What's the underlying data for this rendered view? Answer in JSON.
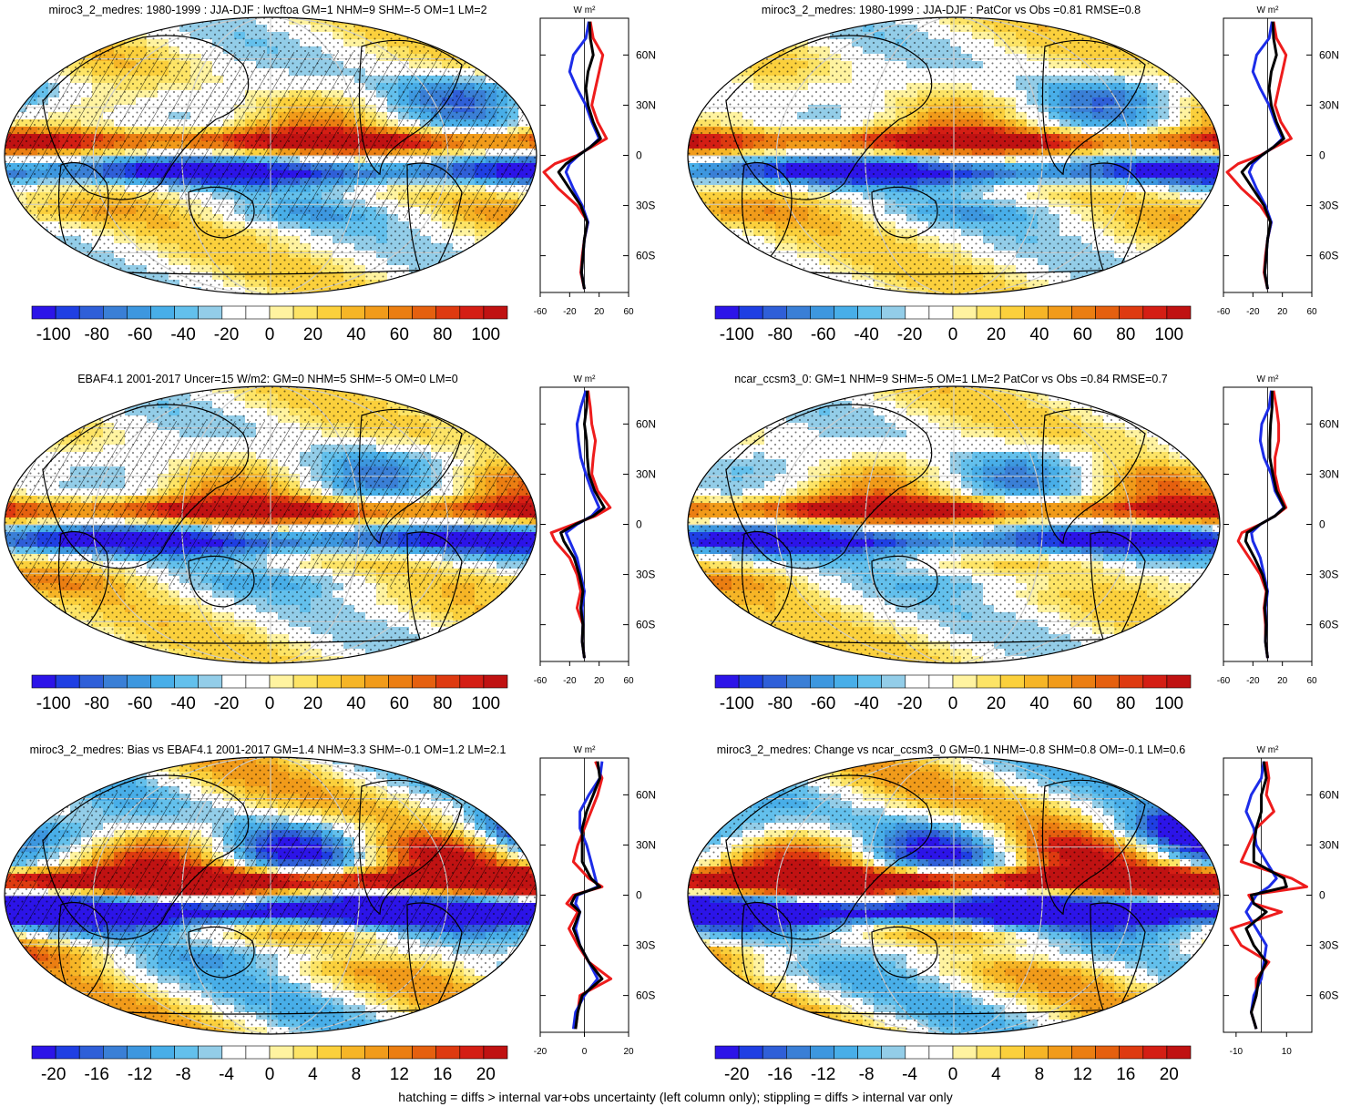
{
  "footer": "hatching = diffs > internal var+obs uncertainty (left column only); stippling = diffs > internal var only",
  "unit_label": "W m²",
  "colors": {
    "scale": [
      "#2c14e8",
      "#1f3fe3",
      "#2f5fd8",
      "#3a7fd6",
      "#3d97df",
      "#48aee8",
      "#63c0ec",
      "#93cde8",
      "#ffffff",
      "#ffffff",
      "#fff3a0",
      "#fde466",
      "#fbd03c",
      "#f6b526",
      "#f19b1a",
      "#eb7e12",
      "#e5600f",
      "#de3a10",
      "#d41e14",
      "#c01212"
    ],
    "sim": "#ee1c1c",
    "obs": "#1c2ce8",
    "mean": "#000000"
  },
  "chart_data": [
    {
      "type": "heatmap",
      "title": "miroc3_2_medres: 1980-1999 : JJA-DJF : lwcftoa GM=1 NHM=9 SHM=-5 OM=1 LM=2",
      "colorbar_ticks": [
        "-100",
        "-80",
        "-60",
        "-40",
        "-20",
        "0",
        "20",
        "40",
        "60",
        "80",
        "100"
      ],
      "colorbar_range": [
        -110,
        110
      ],
      "profile_xticks": [
        "-60",
        "-20",
        "20",
        "60"
      ],
      "profile_xlim": [
        -60,
        60
      ],
      "lat_ticks": [
        "60N",
        "30N",
        "0",
        "30S",
        "60S"
      ],
      "hatched": true,
      "profile_series": [
        {
          "name": "model",
          "lat": [
            80,
            70,
            60,
            50,
            40,
            30,
            20,
            10,
            5,
            0,
            -5,
            -10,
            -20,
            -30,
            -40,
            -50,
            -60,
            -70,
            -80
          ],
          "values": [
            8,
            12,
            25,
            20,
            15,
            10,
            18,
            30,
            10,
            -10,
            -40,
            -55,
            -35,
            -10,
            5,
            0,
            -3,
            -5,
            0
          ]
        },
        {
          "name": "obs",
          "lat": [
            80,
            70,
            60,
            50,
            40,
            30,
            20,
            10,
            5,
            0,
            -5,
            -10,
            -20,
            -30,
            -40,
            -50,
            -60,
            -70,
            -80
          ],
          "values": [
            6,
            2,
            -15,
            -20,
            -10,
            2,
            10,
            20,
            8,
            -8,
            -20,
            -25,
            -15,
            -3,
            5,
            0,
            -2,
            -4,
            0
          ]
        },
        {
          "name": "ensemble",
          "lat": [
            80,
            70,
            60,
            50,
            40,
            30,
            20,
            10,
            5,
            0,
            -5,
            -10,
            -20,
            -30,
            -40,
            -50,
            -60,
            -70,
            -80
          ],
          "values": [
            7,
            8,
            12,
            5,
            2,
            5,
            12,
            22,
            8,
            -8,
            -25,
            -35,
            -20,
            -5,
            4,
            0,
            -2,
            -4,
            0
          ]
        }
      ]
    },
    {
      "type": "heatmap",
      "title": "miroc3_2_medres: 1980-1999 : JJA-DJF : PatCor vs Obs =0.81 RMSE=0.8",
      "colorbar_ticks": [
        "-100",
        "-80",
        "-60",
        "-40",
        "-20",
        "0",
        "20",
        "40",
        "60",
        "80",
        "100"
      ],
      "colorbar_range": [
        -110,
        110
      ],
      "profile_xticks": [
        "-60",
        "-20",
        "20",
        "60"
      ],
      "profile_xlim": [
        -60,
        60
      ],
      "lat_ticks": [
        "60N",
        "30N",
        "0",
        "30S",
        "60S"
      ],
      "hatched": false,
      "profile_series": [
        {
          "name": "model",
          "lat": [
            80,
            70,
            60,
            50,
            40,
            30,
            20,
            10,
            5,
            0,
            -5,
            -10,
            -20,
            -30,
            -40,
            -50,
            -60,
            -70,
            -80
          ],
          "values": [
            8,
            12,
            25,
            20,
            15,
            10,
            18,
            32,
            10,
            -10,
            -40,
            -55,
            -35,
            -10,
            5,
            0,
            -3,
            -5,
            0
          ]
        },
        {
          "name": "obs",
          "lat": [
            80,
            70,
            60,
            50,
            40,
            30,
            20,
            10,
            5,
            0,
            -5,
            -10,
            -20,
            -30,
            -40,
            -50,
            -60,
            -70,
            -80
          ],
          "values": [
            6,
            2,
            -15,
            -20,
            -10,
            2,
            10,
            20,
            8,
            -8,
            -20,
            -25,
            -15,
            -3,
            5,
            0,
            -2,
            -4,
            0
          ]
        },
        {
          "name": "ensemble",
          "lat": [
            80,
            70,
            60,
            50,
            40,
            30,
            20,
            10,
            5,
            0,
            -5,
            -10,
            -20,
            -30,
            -40,
            -50,
            -60,
            -70,
            -80
          ],
          "values": [
            7,
            8,
            12,
            5,
            2,
            5,
            12,
            22,
            8,
            -8,
            -25,
            -35,
            -20,
            -5,
            4,
            0,
            -2,
            -4,
            0
          ]
        }
      ]
    },
    {
      "type": "heatmap",
      "title": "EBAF4.1 2001-2017 Uncer=15 W/m2: GM=0 NHM=5 SHM=-5 OM=0 LM=0",
      "colorbar_ticks": [
        "-100",
        "-80",
        "-60",
        "-40",
        "-20",
        "0",
        "20",
        "40",
        "60",
        "80",
        "100"
      ],
      "colorbar_range": [
        -110,
        110
      ],
      "profile_xticks": [
        "-60",
        "-20",
        "20",
        "60"
      ],
      "profile_xlim": [
        -60,
        60
      ],
      "lat_ticks": [
        "60N",
        "30N",
        "0",
        "30S",
        "60S"
      ],
      "hatched": true,
      "profile_series": [
        {
          "name": "model",
          "lat": [
            80,
            70,
            60,
            50,
            40,
            30,
            20,
            10,
            5,
            0,
            -5,
            -10,
            -20,
            -30,
            -40,
            -50,
            -60,
            -70,
            -80
          ],
          "values": [
            5,
            8,
            10,
            15,
            12,
            10,
            18,
            35,
            15,
            -15,
            -45,
            -40,
            -20,
            -10,
            -5,
            -10,
            -2,
            -3,
            0
          ]
        },
        {
          "name": "obs",
          "lat": [
            80,
            70,
            60,
            50,
            40,
            30,
            20,
            10,
            5,
            0,
            -5,
            -10,
            -20,
            -30,
            -40,
            -50,
            -60,
            -70,
            -80
          ],
          "values": [
            2,
            -5,
            -10,
            -8,
            -5,
            2,
            10,
            20,
            10,
            -10,
            -25,
            -20,
            -10,
            -5,
            0,
            -3,
            -2,
            -3,
            0
          ]
        },
        {
          "name": "ensemble",
          "lat": [
            80,
            70,
            60,
            50,
            40,
            30,
            20,
            10,
            5,
            0,
            -5,
            -10,
            -20,
            -30,
            -40,
            -50,
            -60,
            -70,
            -80
          ],
          "values": [
            4,
            3,
            0,
            3,
            4,
            6,
            14,
            27,
            12,
            -12,
            -32,
            -28,
            -14,
            -7,
            -2,
            -5,
            -2,
            -3,
            0
          ]
        }
      ]
    },
    {
      "type": "heatmap",
      "title": "ncar_ccsm3_0: GM=1 NHM=9 SHM=-5 OM=1 LM=2 PatCor vs Obs =0.84 RMSE=0.7",
      "colorbar_ticks": [
        "-100",
        "-80",
        "-60",
        "-40",
        "-20",
        "0",
        "20",
        "40",
        "60",
        "80",
        "100"
      ],
      "colorbar_range": [
        -110,
        110
      ],
      "profile_xticks": [
        "-60",
        "-20",
        "20",
        "60"
      ],
      "profile_xlim": [
        -60,
        60
      ],
      "lat_ticks": [
        "60N",
        "30N",
        "0",
        "30S",
        "60S"
      ],
      "hatched": false,
      "profile_series": [
        {
          "name": "model",
          "lat": [
            80,
            70,
            60,
            50,
            40,
            30,
            20,
            10,
            5,
            0,
            -5,
            -10,
            -20,
            -30,
            -40,
            -50,
            -60,
            -70,
            -80
          ],
          "values": [
            8,
            12,
            15,
            15,
            10,
            10,
            15,
            25,
            10,
            -10,
            -35,
            -40,
            -25,
            -10,
            -2,
            -5,
            -3,
            -3,
            0
          ]
        },
        {
          "name": "obs",
          "lat": [
            80,
            70,
            60,
            50,
            40,
            30,
            20,
            10,
            5,
            0,
            -5,
            -10,
            -20,
            -30,
            -40,
            -50,
            -60,
            -70,
            -80
          ],
          "values": [
            5,
            2,
            -8,
            -10,
            -5,
            5,
            10,
            22,
            10,
            -10,
            -22,
            -20,
            -10,
            -5,
            0,
            -3,
            -2,
            -3,
            0
          ]
        },
        {
          "name": "ensemble",
          "lat": [
            80,
            70,
            60,
            50,
            40,
            30,
            20,
            10,
            5,
            0,
            -5,
            -10,
            -20,
            -30,
            -40,
            -50,
            -60,
            -70,
            -80
          ],
          "values": [
            6,
            6,
            4,
            3,
            3,
            7,
            12,
            23,
            10,
            -10,
            -28,
            -30,
            -18,
            -7,
            -1,
            -4,
            -2,
            -3,
            0
          ]
        }
      ]
    },
    {
      "type": "heatmap",
      "title": "miroc3_2_medres: Bias vs EBAF4.1 2001-2017 GM=1.4 NHM=3.3 SHM=-0.1 OM=1.2 LM=2.1",
      "colorbar_ticks": [
        "-20",
        "-16",
        "-12",
        "-8",
        "-4",
        "0",
        "4",
        "8",
        "12",
        "16",
        "20"
      ],
      "colorbar_range": [
        -22,
        22
      ],
      "profile_xticks": [
        "-20",
        "0",
        "20"
      ],
      "profile_xlim": [
        -20,
        20
      ],
      "lat_ticks": [
        "60N",
        "30N",
        "0",
        "30S",
        "60S"
      ],
      "hatched": true,
      "profile_series": [
        {
          "name": "model",
          "lat": [
            80,
            70,
            60,
            50,
            40,
            30,
            20,
            10,
            5,
            0,
            -5,
            -10,
            -20,
            -30,
            -40,
            -50,
            -60,
            -70,
            -80
          ],
          "values": [
            5,
            8,
            6,
            3,
            0,
            -3,
            -5,
            2,
            8,
            -5,
            -8,
            -3,
            -7,
            -3,
            2,
            12,
            -2,
            -3,
            -4
          ]
        },
        {
          "name": "obs",
          "lat": [
            80,
            70,
            60,
            50,
            40,
            30,
            20,
            10,
            5,
            0,
            -5,
            -10,
            -20,
            -30,
            -40,
            -50,
            -60,
            -70,
            -80
          ],
          "values": [
            8,
            7,
            2,
            -2,
            -2,
            1,
            3,
            5,
            6,
            -3,
            -4,
            -2,
            -4,
            -2,
            2,
            6,
            0,
            -4,
            -5
          ]
        },
        {
          "name": "ensemble",
          "lat": [
            80,
            70,
            60,
            50,
            40,
            30,
            20,
            10,
            5,
            0,
            -5,
            -10,
            -20,
            -30,
            -40,
            -50,
            -60,
            -70,
            -80
          ],
          "values": [
            6,
            7,
            4,
            1,
            -1,
            -1,
            -1,
            3,
            7,
            -4,
            -6,
            -2,
            -5,
            -2,
            2,
            8,
            -1,
            -3,
            -4
          ]
        }
      ]
    },
    {
      "type": "heatmap",
      "title": "miroc3_2_medres: Change vs ncar_ccsm3_0 GM=0.1 NHM=-0.8 SHM=0.8 OM=-0.1 LM=0.6",
      "colorbar_ticks": [
        "-20",
        "-16",
        "-12",
        "-8",
        "-4",
        "0",
        "4",
        "8",
        "12",
        "16",
        "20"
      ],
      "colorbar_range": [
        -22,
        22
      ],
      "profile_xticks": [
        "-10",
        "10"
      ],
      "profile_xlim": [
        -15,
        20
      ],
      "lat_ticks": [
        "60N",
        "30N",
        "0",
        "30S",
        "60S"
      ],
      "hatched": false,
      "profile_series": [
        {
          "name": "model",
          "lat": [
            80,
            70,
            60,
            50,
            40,
            30,
            20,
            10,
            5,
            0,
            -5,
            -10,
            -20,
            -30,
            -40,
            -50,
            -60,
            -70,
            -80
          ],
          "values": [
            2,
            3,
            2,
            5,
            -2,
            -5,
            -8,
            12,
            18,
            -5,
            -3,
            8,
            -12,
            -8,
            3,
            -2,
            -2,
            -4,
            -2
          ]
        },
        {
          "name": "obs",
          "lat": [
            80,
            70,
            60,
            50,
            40,
            30,
            20,
            10,
            5,
            0,
            -5,
            -10,
            -20,
            -30,
            -40,
            -50,
            -60,
            -70,
            -80
          ],
          "values": [
            1,
            0,
            -4,
            -6,
            -3,
            -2,
            2,
            6,
            3,
            -2,
            -4,
            -6,
            -2,
            2,
            1,
            0,
            -3,
            -4,
            -2
          ]
        },
        {
          "name": "ensemble",
          "lat": [
            80,
            70,
            60,
            50,
            40,
            30,
            20,
            10,
            5,
            0,
            -5,
            -10,
            -20,
            -30,
            -40,
            -50,
            -60,
            -70,
            -80
          ],
          "values": [
            1,
            2,
            0,
            0,
            -2,
            -3,
            -3,
            9,
            10,
            -4,
            -3,
            2,
            -6,
            -3,
            2,
            -1,
            -2,
            -4,
            -2
          ]
        }
      ]
    }
  ]
}
